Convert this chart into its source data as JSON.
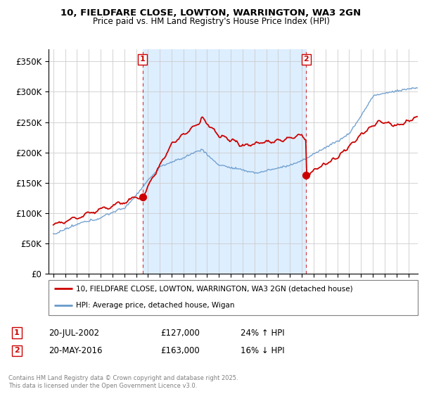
{
  "title_line1": "10, FIELDFARE CLOSE, LOWTON, WARRINGTON, WA3 2GN",
  "title_line2": "Price paid vs. HM Land Registry's House Price Index (HPI)",
  "legend_line1": "10, FIELDFARE CLOSE, LOWTON, WARRINGTON, WA3 2GN (detached house)",
  "legend_line2": "HPI: Average price, detached house, Wigan",
  "footer": "Contains HM Land Registry data © Crown copyright and database right 2025.\nThis data is licensed under the Open Government Licence v3.0.",
  "sale1_date": "20-JUL-2002",
  "sale1_price": "£127,000",
  "sale1_hpi": "24% ↑ HPI",
  "sale2_date": "20-MAY-2016",
  "sale2_price": "£163,000",
  "sale2_hpi": "16% ↓ HPI",
  "red_color": "#cc0000",
  "blue_color": "#6699cc",
  "shade_color": "#ddeeff",
  "ylim_min": 0,
  "ylim_max": 370000,
  "yticks": [
    0,
    50000,
    100000,
    150000,
    200000,
    250000,
    300000,
    350000
  ],
  "ytick_labels": [
    "£0",
    "£50K",
    "£100K",
    "£150K",
    "£200K",
    "£250K",
    "£300K",
    "£350K"
  ],
  "sale1_x": 2002.55,
  "sale1_y": 127000,
  "sale2_x": 2016.38,
  "sale2_y": 163000,
  "xmin": 1995,
  "xmax": 2025
}
